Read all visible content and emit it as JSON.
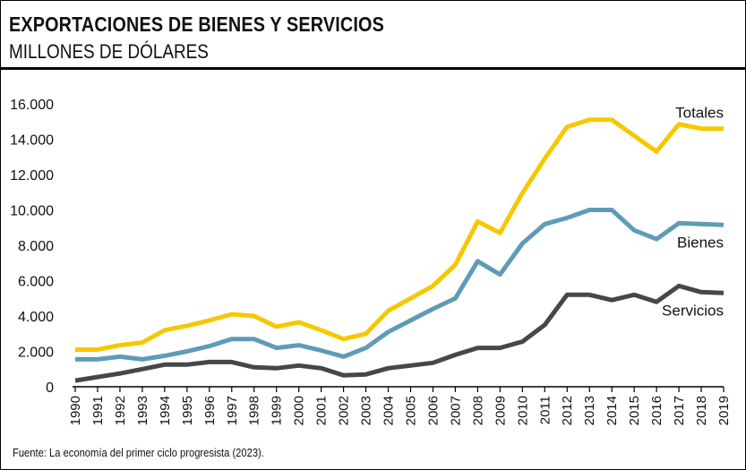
{
  "title": "EXPORTACIONES DE BIENES Y SERVICIOS",
  "subtitle": "MILLONES DE DÓLARES",
  "source": "Fuente: La economía del primer ciclo progresista (2023).",
  "chart_data": {
    "type": "line",
    "title": "EXPORTACIONES DE BIENES Y SERVICIOS",
    "ylabel": "MILLONES DE DÓLARES",
    "xlabel": "",
    "ylim": [
      0,
      16000
    ],
    "yticks": [
      0,
      2000,
      4000,
      6000,
      8000,
      10000,
      12000,
      14000,
      16000
    ],
    "ytick_labels": [
      "0",
      "2.000",
      "4.000",
      "6.000",
      "8.000",
      "10.000",
      "12.000",
      "14.000",
      "16.000"
    ],
    "x": [
      "1990",
      "1991",
      "1992",
      "1993",
      "1994",
      "1995",
      "1996",
      "1997",
      "1998",
      "1999",
      "2000",
      "2001",
      "2002",
      "2003",
      "2004",
      "2005",
      "2006",
      "2007",
      "2008",
      "2009",
      "2010",
      "2011",
      "2012",
      "2013",
      "2014",
      "2015",
      "2016",
      "2017",
      "2018",
      "2019"
    ],
    "grid": false,
    "series": [
      {
        "name": "Totales",
        "color": "#f5c800",
        "values": [
          2100,
          2100,
          2350,
          2500,
          3200,
          3450,
          3750,
          4100,
          4000,
          3400,
          3650,
          3200,
          2700,
          3000,
          4300,
          5000,
          5700,
          6900,
          9350,
          8700,
          10950,
          12900,
          14700,
          15100,
          15100,
          14200,
          13300,
          14850,
          14600,
          14600
        ]
      },
      {
        "name": "Bienes",
        "color": "#5f9bb7",
        "values": [
          1550,
          1550,
          1700,
          1550,
          1750,
          2000,
          2300,
          2700,
          2700,
          2200,
          2350,
          2050,
          1700,
          2200,
          3100,
          3750,
          4400,
          5000,
          7100,
          6350,
          8100,
          9200,
          9550,
          10000,
          10000,
          8850,
          8350,
          9250,
          9200,
          9150
        ]
      },
      {
        "name": "Servicios",
        "color": "#474747",
        "values": [
          350,
          550,
          750,
          1000,
          1250,
          1250,
          1400,
          1400,
          1100,
          1050,
          1200,
          1050,
          650,
          700,
          1050,
          1200,
          1350,
          1800,
          2200,
          2200,
          2550,
          3500,
          5200,
          5200,
          4900,
          5200,
          4800,
          5700,
          5350,
          5300
        ]
      }
    ]
  }
}
